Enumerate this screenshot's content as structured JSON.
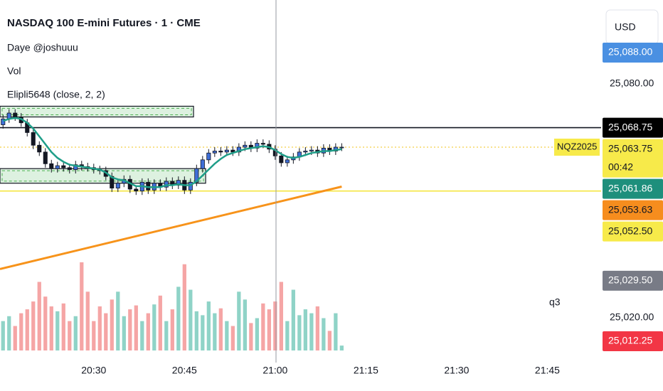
{
  "chart_data": {
    "type": "candlestick",
    "title": "NASDAQ 100 E-mini Futures · 1 · CME",
    "legend_lines": [
      "Daye @joshuuu",
      "Vol",
      "Elipli5648 (close, 2, 2)"
    ],
    "currency": "USD",
    "symbol_tag": "NQZ2025",
    "annotation": "q3",
    "xlim": [
      -0.5,
      98.3
    ],
    "xticks": [
      {
        "value": 15,
        "label": "20:30"
      },
      {
        "value": 30,
        "label": "20:45"
      },
      {
        "value": 45,
        "label": "21:00"
      },
      {
        "value": 60,
        "label": "21:15"
      },
      {
        "value": 75,
        "label": "21:30"
      },
      {
        "value": 90,
        "label": "21:45"
      }
    ],
    "ylim": [
      25008.5,
      25101.5
    ],
    "yticks": [
      {
        "value": 25080,
        "label": "25,080.00"
      },
      {
        "value": 25020,
        "label": "25,020.00"
      }
    ],
    "up_color": "#3f6fd8",
    "down_color": "#131722",
    "open": [
      25069.5,
      25071,
      25072.5,
      25071.5,
      25070,
      25067.5,
      25064.25,
      25062.5,
      25059.5,
      25058.25,
      25059,
      25058.5,
      25058,
      25059.25,
      25058.75,
      25058.5,
      25058,
      25057.75,
      25056.25,
      25053.25,
      25054.5,
      25055.5,
      25053,
      25052.5,
      25054.75,
      25052.75,
      25054.5,
      25053.5,
      25055,
      25054,
      25055.25,
      25052.75,
      25054.75,
      25058.25,
      25060.5,
      25062.25,
      25062.75,
      25062.5,
      25063,
      25062.5,
      25063.75,
      25064.25,
      25063.5,
      25064.75,
      25064.5,
      25063.25,
      25061.5,
      25059.75,
      25060.5,
      25061.25,
      25062.5,
      25062.75,
      25063,
      25062.25,
      25063.5,
      25062.75,
      25063.75
    ],
    "high": [
      25072,
      25073.5,
      25073.5,
      25072.5,
      25071,
      25068.5,
      25065.25,
      25063.5,
      25060.5,
      25060,
      25060,
      25059.5,
      25060.25,
      25060.25,
      25059.75,
      25059.5,
      25059,
      25058.75,
      25057.25,
      25055.5,
      25056.5,
      25056.5,
      25054,
      25055.75,
      25055.75,
      25055.5,
      25055.5,
      25056,
      25056,
      25056.25,
      25056.25,
      25055.75,
      25059.25,
      25061.5,
      25063.25,
      25063.75,
      25063.75,
      25064,
      25064,
      25064.75,
      25065.25,
      25065.25,
      25065.75,
      25065.75,
      25065.5,
      25064.25,
      25062.5,
      25061.5,
      25062.25,
      25063.5,
      25063.75,
      25064,
      25064,
      25064.5,
      25064.5,
      25064.75,
      25064.75
    ],
    "low": [
      25068.5,
      25070,
      25070.5,
      25069,
      25066.5,
      25063.25,
      25061.5,
      25058.5,
      25057.25,
      25057.25,
      25057.5,
      25057,
      25057,
      25057.75,
      25057.5,
      25057,
      25056.75,
      25055.25,
      25052.25,
      25052.25,
      25053.5,
      25052,
      25051.5,
      25051.5,
      25051.75,
      25051.75,
      25052.5,
      25052.5,
      25053,
      25053,
      25051.75,
      25051.75,
      25053.75,
      25057.25,
      25059.5,
      25061.25,
      25061.5,
      25061.5,
      25061.5,
      25061.5,
      25062.75,
      25062.5,
      25062.5,
      25063.5,
      25062.25,
      25060.5,
      25058.75,
      25058.75,
      25059.5,
      25060.25,
      25061.5,
      25061.75,
      25061.25,
      25061.25,
      25061.75,
      25061.75,
      25062.75
    ],
    "close": [
      25071,
      25072.5,
      25071.5,
      25070,
      25067.5,
      25064.25,
      25062.5,
      25059.5,
      25058.25,
      25059,
      25058.5,
      25058,
      25059.25,
      25058.75,
      25058.5,
      25058,
      25057.75,
      25056.25,
      25053.25,
      25054.5,
      25055.5,
      25053,
      25052.5,
      25054.75,
      25052.75,
      25054.5,
      25053.5,
      25055,
      25054,
      25055.25,
      25052.75,
      25054.75,
      25058.25,
      25060.5,
      25062.25,
      25062.75,
      25062.5,
      25063,
      25062.5,
      25063.75,
      25064.25,
      25063.5,
      25064.75,
      25064.5,
      25063.25,
      25061.5,
      25059.75,
      25060.5,
      25061.25,
      25062.5,
      25062.75,
      25063,
      25062.25,
      25063.5,
      25062.75,
      25063.75,
      25063.75
    ],
    "volume": {
      "values": [
        300,
        350,
        250,
        380,
        420,
        500,
        700,
        550,
        450,
        400,
        480,
        300,
        350,
        900,
        600,
        300,
        450,
        380,
        520,
        600,
        350,
        420,
        460,
        300,
        380,
        470,
        560,
        300,
        420,
        650,
        880,
        620,
        400,
        360,
        500,
        380,
        430,
        300,
        250,
        600,
        520,
        280,
        330,
        480,
        420,
        500,
        700,
        300,
        620,
        360,
        420,
        380,
        450,
        330,
        200,
        380,
        50
      ],
      "ylim": [
        0,
        3700
      ],
      "up_color": "#8fd3c7",
      "down_color": "#f5a5a5"
    },
    "ma": {
      "color": "#1f9e89",
      "values": [
        25070.5,
        25071,
        25071.25,
        25071,
        25070,
        25068.5,
        25066.5,
        25064.5,
        25062.5,
        25061,
        25060,
        25059.25,
        25059,
        25058.75,
        25058.5,
        25058.25,
        25058,
        25057.25,
        25056,
        25055.5,
        25055.25,
        25054.5,
        25053.75,
        25053.75,
        25053.5,
        25053.5,
        25053.5,
        25054,
        25054,
        25054.25,
        25054,
        25054,
        25055,
        25056.5,
        25058,
        25059.5,
        25060.75,
        25061.75,
        25062.25,
        25062.75,
        25063.25,
        25063.5,
        25063.75,
        25064,
        25063.75,
        25063,
        25062,
        25061.25,
        25061,
        25061.25,
        25061.75,
        25062.25,
        25062.5,
        25062.75,
        25062.75,
        25063,
        25063.25
      ]
    },
    "trendline": {
      "x": [
        -0.5,
        56
      ],
      "values": [
        25032.5,
        25053.63
      ],
      "color": "#f7931a"
    },
    "hlines": [
      {
        "value": 25068.75,
        "color": "#131722"
      },
      {
        "value": 25052.5,
        "color": "#f5e642"
      },
      {
        "value": 25063.75,
        "color": "#f0c419",
        "dotted": true
      }
    ],
    "zones": [
      {
        "x": [
          -0.5,
          31.5
        ],
        "values": [
          25071.5,
          25074.25
        ]
      },
      {
        "x": [
          -0.5,
          33.5
        ],
        "values": [
          25054.5,
          25058.25
        ]
      }
    ],
    "price_labels": [
      {
        "value": 25088,
        "label": "25,088.00",
        "color": "#4a90e2",
        "text_color": "#ffffff"
      },
      {
        "value": 25068.75,
        "label": "25,068.75",
        "color": "#000000",
        "text_color": "#ffffff"
      },
      {
        "value": 25063.75,
        "label": "25,063.75",
        "color": "#f7ea4a",
        "text_color": "#131722",
        "countdown": "00:42"
      },
      {
        "value": 25061.86,
        "label": "25,061.86",
        "color": "#1e8f7c",
        "text_color": "#ffffff"
      },
      {
        "value": 25053.63,
        "label": "25,053.63",
        "color": "#f68d1e",
        "text_color": "#131722"
      },
      {
        "value": 25052.5,
        "label": "25,052.50",
        "color": "#f7ea4a",
        "text_color": "#131722"
      },
      {
        "value": 25029.5,
        "label": "25,029.50",
        "color": "#787b86",
        "text_color": "#ffffff"
      },
      {
        "value": 25012.25,
        "label": "25,012.25",
        "color": "#f23645",
        "text_color": "#ffffff"
      }
    ]
  }
}
